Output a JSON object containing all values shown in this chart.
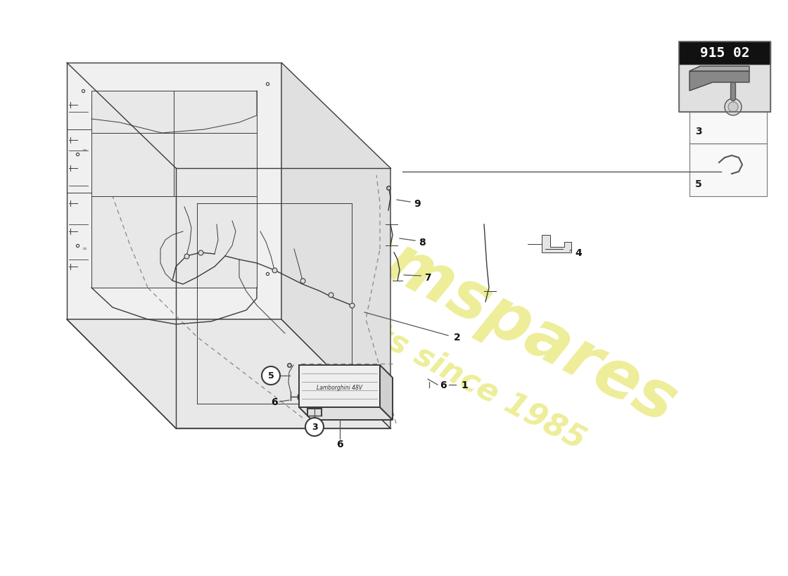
{
  "bg_color": "#ffffff",
  "watermark1": "ellamspares",
  "watermark2": "a parts since 1985",
  "watermark_color": "#d4d400",
  "watermark_alpha": 0.4,
  "part_number": "915 02",
  "outline_color": "#3a3a3a",
  "line_color": "#555555",
  "dash_color": "#888888",
  "label_color": "#1a1a1a",
  "chassis_fill": "#f5f5f5",
  "ecu_fill": "#eeeeee",
  "ecu_top_fill": "#e0e0e0",
  "ecu_side_fill": "#d0d0d0"
}
